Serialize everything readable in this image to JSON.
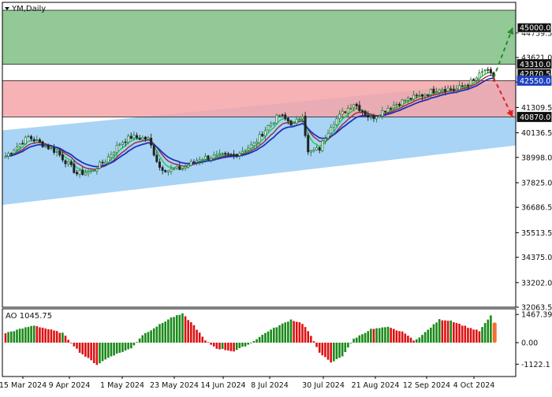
{
  "chart_data": [
    {
      "type": "candlestick",
      "title": "YM,Daily",
      "symbol": "YM",
      "timeframe": "Daily",
      "ylim": [
        32063.5,
        46174.5
      ],
      "y_ticks": [
        "44759.5",
        "43621.0",
        "42482.5",
        "41309.5",
        "40136.5",
        "38998.0",
        "37825.0",
        "36686.5",
        "35513.5",
        "34375.0",
        "33202.0",
        "32063.5"
      ],
      "x_ticks": [
        "15 Mar 2024",
        "9 Apr 2024",
        "1 May 2024",
        "23 May 2024",
        "14 Jun 2024",
        "8 Jul 2024",
        "30 Jul 2024",
        "21 Aug 2024",
        "12 Sep 2024",
        "4 Oct 2024"
      ],
      "price_labels": [
        {
          "text": "45000.0",
          "value": 45000.0,
          "style": "boxed-dark"
        },
        {
          "text": "43310.0",
          "value": 43310.0,
          "style": "dark"
        },
        {
          "text": "42870.5",
          "value": 42870.5,
          "style": "boxed-dark"
        },
        {
          "text": "42550.0",
          "value": 42550.0,
          "style": "blue"
        },
        {
          "text": "40870.0",
          "value": 40870.0,
          "style": "dark"
        }
      ],
      "zones": [
        {
          "name": "target-zone",
          "from": 43310.0,
          "to": 45810.0,
          "color": "#7fbf84"
        },
        {
          "name": "stop-zone",
          "from": 40870.0,
          "to": 42550.0,
          "color": "#f4a4a8"
        }
      ],
      "channel": {
        "color": "#a9d4f5"
      },
      "scenario_arrows": [
        {
          "direction": "up",
          "target": 45000.0,
          "color": "#2a8a2a"
        },
        {
          "direction": "down",
          "target": 40870.0,
          "color": "#dd2222"
        }
      ],
      "moving_averages": [
        {
          "color": "#22c84a"
        },
        {
          "color": "#9b2a3a"
        },
        {
          "color": "#1f2fbf"
        }
      ],
      "colors": {
        "bullish": "#2f7a3c",
        "bearish": "#222222",
        "grid": "#c8c8c8"
      }
    },
    {
      "type": "histogram",
      "title": "AO 1045.75",
      "indicator": "AO",
      "last_value": 1045.75,
      "ylim": [
        -1600,
        1600
      ],
      "y_ticks": [
        "1467.39",
        "0.00",
        "-1122.1"
      ],
      "colors": {
        "up": "#1a8a1a",
        "down": "#dd1111",
        "last": "#f07030"
      }
    }
  ]
}
